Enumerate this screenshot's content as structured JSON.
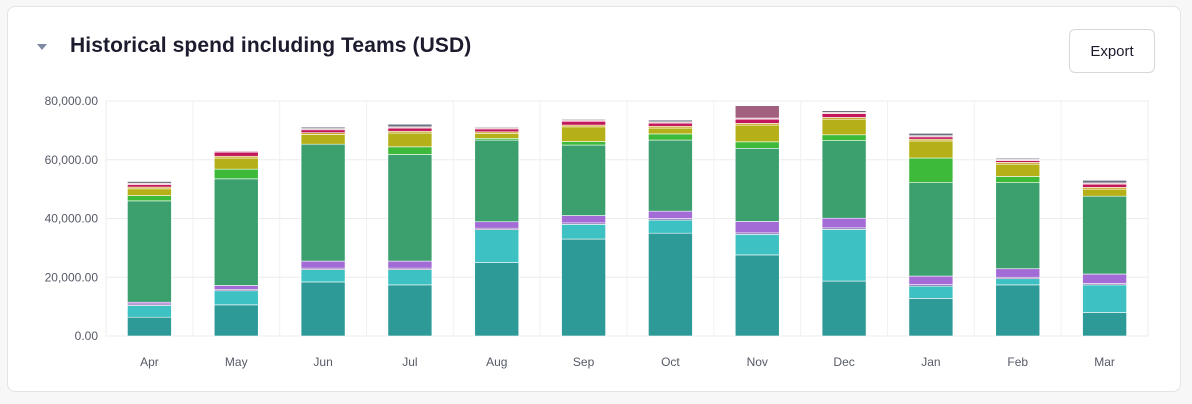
{
  "header": {
    "title": "Historical spend including Teams (USD)",
    "export_label": "Export"
  },
  "chart_data": {
    "type": "bar",
    "stacked": true,
    "title": "Historical spend including Teams (USD)",
    "xlabel": "",
    "ylabel": "",
    "ylim": [
      0,
      80000
    ],
    "yticks": [
      "0.00",
      "20,000.00",
      "40,000.00",
      "60,000.00",
      "80,000.00"
    ],
    "ytick_values": [
      0,
      20000,
      40000,
      60000,
      80000
    ],
    "grid": true,
    "categories": [
      "Apr",
      "May",
      "Jun",
      "Jul",
      "Aug",
      "Sep",
      "Oct",
      "Nov",
      "Dec",
      "Jan",
      "Feb",
      "Mar"
    ],
    "series": [
      {
        "color": "#2e9a98",
        "values": [
          6400,
          10600,
          18400,
          17400,
          25000,
          33000,
          35000,
          27600,
          18700,
          12800,
          17400,
          8000
        ]
      },
      {
        "color": "#3dc1c3",
        "values": [
          4000,
          4800,
          4200,
          5200,
          11200,
          5000,
          4500,
          7000,
          17600,
          4200,
          2100,
          9400
        ]
      },
      {
        "color": "#7b5ea7",
        "values": [
          500,
          500,
          500,
          500,
          500,
          500,
          500,
          500,
          500,
          500,
          500,
          500
        ]
      },
      {
        "color": "#a36bd6",
        "values": [
          600,
          1300,
          2400,
          2400,
          2200,
          2500,
          2500,
          3900,
          3300,
          2900,
          2900,
          3200
        ]
      },
      {
        "color": "#3c9f6e",
        "values": [
          34500,
          36300,
          39800,
          36300,
          27800,
          24000,
          24200,
          24900,
          26400,
          31800,
          29300,
          26500
        ]
      },
      {
        "color": "#3dba3a",
        "values": [
          1800,
          3300,
          0,
          2600,
          600,
          1200,
          2100,
          2200,
          2000,
          8400,
          2100,
          0
        ]
      },
      {
        "color": "#b5b017",
        "values": [
          2300,
          3800,
          3300,
          4700,
          1600,
          5000,
          2000,
          5700,
          5300,
          5800,
          4200,
          2400
        ]
      },
      {
        "color": "#c8a020",
        "values": [
          600,
          600,
          600,
          600,
          600,
          600,
          600,
          600,
          600,
          600,
          600,
          600
        ]
      },
      {
        "color": "#c2185b",
        "values": [
          900,
          1400,
          1000,
          1100,
          1000,
          1300,
          1100,
          1400,
          1300,
          800,
          600,
          1100
        ]
      },
      {
        "color": "#e2a8b8",
        "values": [
          400,
          400,
          400,
          400,
          400,
          400,
          400,
          400,
          400,
          400,
          400,
          400
        ]
      },
      {
        "color": "#6b6f80",
        "values": [
          600,
          0,
          500,
          900,
          300,
          300,
          600,
          0,
          600,
          800,
          400,
          900
        ]
      },
      {
        "color": "#a1607e",
        "values": [
          0,
          0,
          0,
          0,
          0,
          0,
          0,
          4200,
          0,
          0,
          0,
          0
        ]
      }
    ]
  }
}
